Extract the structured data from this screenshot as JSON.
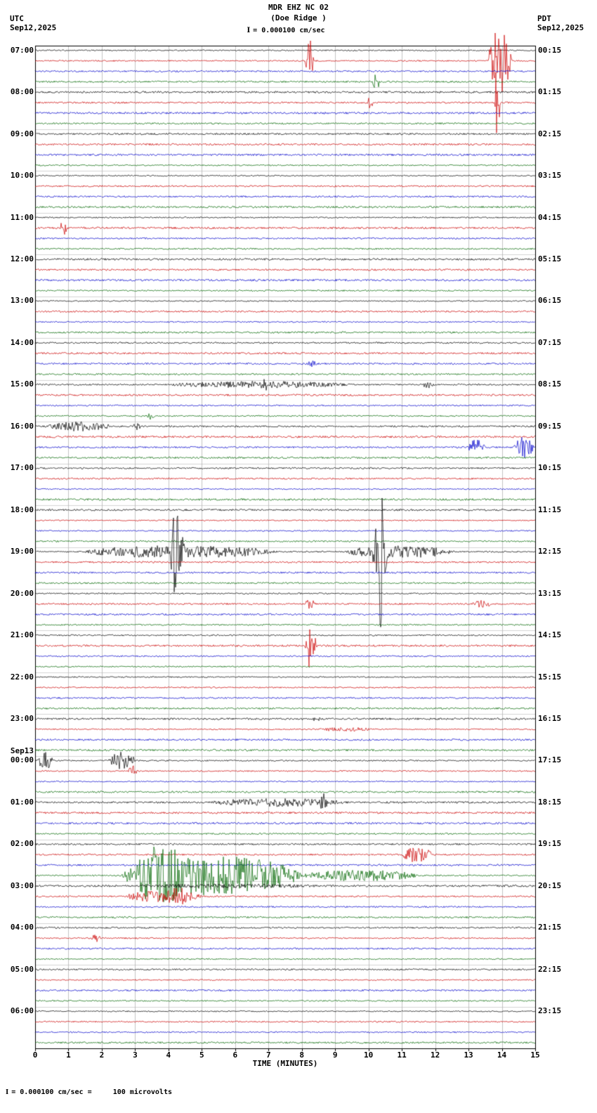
{
  "header": {
    "station_title": "MDR EHZ NC 02",
    "station_subtitle": "(Doe Ridge )",
    "scale_label": "= 0.000100 cm/sec",
    "left_tz": "UTC",
    "left_date": "Sep12,2025",
    "right_tz": "PDT",
    "right_date": "Sep12,2025"
  },
  "footer": {
    "scale_note": "= 0.000100 cm/sec =     100 microvolts"
  },
  "x_axis": {
    "title": "TIME (MINUTES)",
    "ticks": [
      "0",
      "1",
      "2",
      "3",
      "4",
      "5",
      "6",
      "7",
      "8",
      "9",
      "10",
      "11",
      "12",
      "13",
      "14",
      "15"
    ]
  },
  "chart_data": {
    "type": "line",
    "kind": "helicorder-seismogram",
    "rows": 96,
    "rows_per_hour": 4,
    "minutes_per_row": 15,
    "xlim": [
      0,
      15
    ],
    "grid": true,
    "color_cycle": [
      "#000000",
      "#cc0000",
      "#0000cc",
      "#006600"
    ],
    "left_labels": [
      "07:00",
      "08:00",
      "09:00",
      "10:00",
      "11:00",
      "12:00",
      "13:00",
      "14:00",
      "15:00",
      "16:00",
      "17:00",
      "18:00",
      "19:00",
      "20:00",
      "21:00",
      "22:00",
      "23:00",
      "00:00",
      "01:00",
      "02:00",
      "03:00",
      "04:00",
      "05:00",
      "06:00"
    ],
    "sep13_label": "Sep13",
    "right_labels": [
      "00:15",
      "01:15",
      "02:15",
      "03:15",
      "04:15",
      "05:15",
      "06:15",
      "07:15",
      "08:15",
      "09:15",
      "10:15",
      "11:15",
      "12:15",
      "13:15",
      "14:15",
      "15:15",
      "16:15",
      "17:15",
      "18:15",
      "19:15",
      "20:15",
      "21:15",
      "22:15",
      "23:15"
    ],
    "events": [
      {
        "row": 1,
        "x0": 8.1,
        "x1": 8.35,
        "amp": 30
      },
      {
        "row": 1,
        "x0": 13.6,
        "x1": 14.3,
        "amp": 45
      },
      {
        "row": 3,
        "x0": 10.1,
        "x1": 10.35,
        "amp": 11
      },
      {
        "row": 5,
        "x0": 9.95,
        "x1": 10.15,
        "amp": 9
      },
      {
        "row": 5,
        "x0": 13.78,
        "x1": 13.95,
        "amp": 60
      },
      {
        "row": 17,
        "x0": 0.75,
        "x1": 0.95,
        "amp": 11
      },
      {
        "row": 30,
        "x0": 8.15,
        "x1": 8.45,
        "amp": 5
      },
      {
        "row": 32,
        "x0": 4.0,
        "x1": 9.5,
        "amp": 5
      },
      {
        "row": 32,
        "x0": 6.8,
        "x1": 7.0,
        "amp": 9
      },
      {
        "row": 32,
        "x0": 11.6,
        "x1": 12.0,
        "amp": 5
      },
      {
        "row": 35,
        "x0": 3.3,
        "x1": 3.6,
        "amp": 6
      },
      {
        "row": 36,
        "x0": 0.35,
        "x1": 2.3,
        "amp": 7
      },
      {
        "row": 36,
        "x0": 2.9,
        "x1": 3.2,
        "amp": 5
      },
      {
        "row": 38,
        "x0": 13.0,
        "x1": 13.5,
        "amp": 13
      },
      {
        "row": 38,
        "x0": 14.35,
        "x1": 14.95,
        "amp": 15
      },
      {
        "row": 48,
        "x0": 1.4,
        "x1": 7.3,
        "amp": 9
      },
      {
        "row": 48,
        "x0": 3.9,
        "x1": 4.5,
        "amp": 35
      },
      {
        "row": 48,
        "x0": 4.1,
        "x1": 4.3,
        "amp": 95
      },
      {
        "row": 48,
        "x0": 9.3,
        "x1": 12.6,
        "amp": 9
      },
      {
        "row": 48,
        "x0": 10.1,
        "x1": 10.6,
        "amp": 40
      },
      {
        "row": 48,
        "x0": 10.3,
        "x1": 10.45,
        "amp": 115
      },
      {
        "row": 53,
        "x0": 8.1,
        "x1": 8.4,
        "amp": 7
      },
      {
        "row": 53,
        "x0": 13.1,
        "x1": 13.7,
        "amp": 6
      },
      {
        "row": 57,
        "x0": 8.1,
        "x1": 8.45,
        "amp": 18
      },
      {
        "row": 57,
        "x0": 8.2,
        "x1": 8.3,
        "amp": 60
      },
      {
        "row": 64,
        "x0": 8.3,
        "x1": 8.55,
        "amp": 4
      },
      {
        "row": 65,
        "x0": 8.4,
        "x1": 10.2,
        "amp": 3
      },
      {
        "row": 68,
        "x0": 0.05,
        "x1": 0.55,
        "amp": 12
      },
      {
        "row": 68,
        "x0": 2.2,
        "x1": 3.0,
        "amp": 13
      },
      {
        "row": 69,
        "x0": 2.8,
        "x1": 3.05,
        "amp": 9
      },
      {
        "row": 72,
        "x0": 5.2,
        "x1": 9.4,
        "amp": 6
      },
      {
        "row": 72,
        "x0": 8.5,
        "x1": 8.8,
        "amp": 13
      },
      {
        "row": 77,
        "x0": 11.0,
        "x1": 11.9,
        "amp": 12
      },
      {
        "row": 79,
        "x0": 2.6,
        "x1": 8.0,
        "amp": 28
      },
      {
        "row": 79,
        "x0": 3.0,
        "x1": 4.6,
        "amp": 45
      },
      {
        "row": 79,
        "x0": 8.0,
        "x1": 11.5,
        "amp": 8
      },
      {
        "row": 80,
        "x0": 2.6,
        "x1": 9.0,
        "amp": 3
      },
      {
        "row": 81,
        "x0": 2.7,
        "x1": 5.0,
        "amp": 9
      },
      {
        "row": 81,
        "x0": 4.0,
        "x1": 4.6,
        "amp": 14
      },
      {
        "row": 85,
        "x0": 1.7,
        "x1": 1.95,
        "amp": 7
      }
    ]
  }
}
